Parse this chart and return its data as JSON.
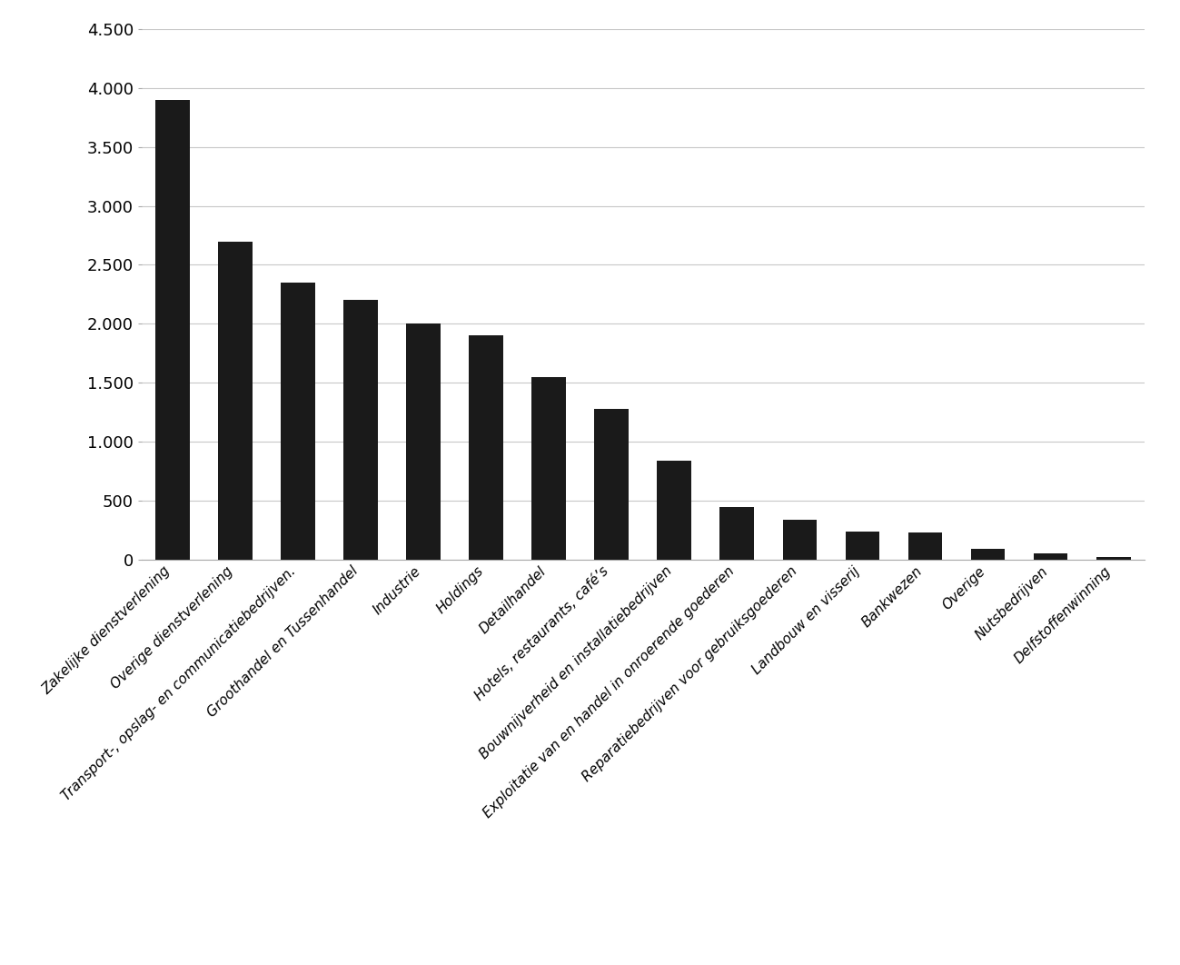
{
  "categories": [
    "Zakelijke dienstverlening",
    "Overige dienstverlening",
    "Transport-, opslag- en communicatiebedrijven.",
    "Groothandel en Tussenhandel",
    "Industrie",
    "Holdings",
    "Detailhandel",
    "Hotels, restaurants, café’s",
    "Bouwnijverheid en installatiebedrijven",
    "Exploitatie van en handel in onroerende goederen",
    "Reparatiebedrijven voor gebruiksgoederen",
    "Landbouw en visserij",
    "Bankwezen",
    "Overige",
    "Nutsbedrijven",
    "Delfstoffenwinning"
  ],
  "values": [
    3900,
    2700,
    2350,
    2200,
    2000,
    1900,
    1550,
    1280,
    840,
    450,
    340,
    240,
    230,
    90,
    55,
    25
  ],
  "bar_color": "#1a1a1a",
  "ylim": [
    0,
    4500
  ],
  "yticks": [
    0,
    500,
    1000,
    1500,
    2000,
    2500,
    3000,
    3500,
    4000,
    4500
  ],
  "ytick_labels": [
    "0",
    "500",
    "1.000",
    "1.500",
    "2.000",
    "2.500",
    "3.000",
    "3.500",
    "4.000",
    "4.500"
  ],
  "grid_color": "#c8c8c8",
  "background_color": "#ffffff",
  "tick_fontsize": 13,
  "label_fontsize": 11
}
